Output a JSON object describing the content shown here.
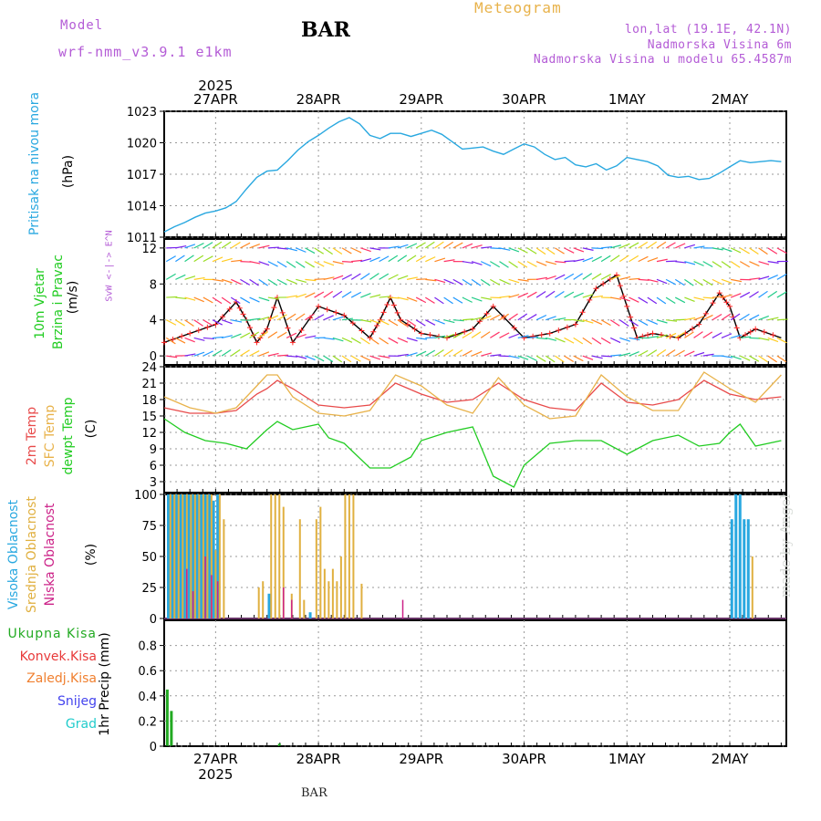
{
  "header": {
    "model_label": "Model",
    "model_run": "wrf-nmm_v3.9.1 e1km",
    "station": "BAR",
    "product": "Meteogram",
    "location": "lon,lat (19.1E, 42.1N)",
    "elevation": "Nadmorska Visina 6m",
    "model_elevation": "Nadmorska Visina u modelu 65.4587m"
  },
  "footer": {
    "station": "BAR",
    "credit": "made by Angel"
  },
  "colors": {
    "pressure": "#29a8e0",
    "temp2m": "#e84a4a",
    "sfc_temp": "#e8b24a",
    "dewpt": "#22cc22",
    "wind_speed": "#000000",
    "wind_dir": "#ff2222",
    "high_cloud": "#29a8e0",
    "mid_cloud": "#e0b040",
    "low_cloud": "#cc2288",
    "precip_total": "#22aa22",
    "precip_conv": "#e83a3a",
    "precip_frz": "#f08030",
    "snow": "#4444ee",
    "hail": "#22cccc",
    "grid": "#999999"
  },
  "time_axis": {
    "year": "2025",
    "days": [
      "27APR",
      "28APR",
      "29APR",
      "30APR",
      "1MAY",
      "2MAY"
    ]
  },
  "chart_data": [
    {
      "type": "line",
      "panel": "pressure",
      "ylabel": [
        "Pritisak na nivou mora",
        "(hPa)"
      ],
      "ylim": [
        1011,
        1023
      ],
      "yticks": [
        1011,
        1014,
        1017,
        1020,
        1023
      ],
      "x_unit": "days since 26APR 12:00 (days)",
      "series": [
        {
          "name": "Pritisak na nivou mora",
          "x": [
            0,
            0.1,
            0.2,
            0.3,
            0.4,
            0.5,
            0.6,
            0.7,
            0.8,
            0.9,
            1.0,
            1.1,
            1.2,
            1.3,
            1.4,
            1.5,
            1.6,
            1.7,
            1.8,
            1.9,
            2.0,
            2.1,
            2.2,
            2.3,
            2.4,
            2.5,
            2.6,
            2.7,
            2.8,
            2.9,
            3.0,
            3.1,
            3.2,
            3.3,
            3.4,
            3.5,
            3.6,
            3.7,
            3.8,
            3.9,
            4.0,
            4.1,
            4.2,
            4.3,
            4.4,
            4.5,
            4.6,
            4.7,
            4.8,
            4.9,
            5.0,
            5.1,
            5.2,
            5.3,
            5.4,
            5.5,
            5.6,
            5.7,
            5.8,
            5.9,
            6.0
          ],
          "values": [
            1011.5,
            1012.0,
            1012.4,
            1012.9,
            1013.3,
            1013.5,
            1013.8,
            1014.4,
            1015.6,
            1016.7,
            1017.3,
            1017.4,
            1018.3,
            1019.3,
            1020.1,
            1020.7,
            1021.4,
            1022.0,
            1022.4,
            1021.8,
            1020.7,
            1020.4,
            1020.9,
            1020.9,
            1020.6,
            1020.9,
            1021.2,
            1020.8,
            1020.1,
            1019.4,
            1019.5,
            1019.6,
            1019.2,
            1018.9,
            1019.4,
            1019.9,
            1019.6,
            1018.9,
            1018.4,
            1018.6,
            1017.9,
            1017.7,
            1018.0,
            1017.4,
            1017.8,
            1018.6,
            1018.4,
            1018.2,
            1017.8,
            1016.9,
            1016.7,
            1016.8,
            1016.5,
            1016.6,
            1017.1,
            1017.7,
            1018.3,
            1018.1,
            1018.2,
            1018.3,
            1018.2
          ]
        }
      ]
    },
    {
      "type": "line",
      "panel": "wind",
      "ylabel": [
        "10m Vjetar",
        "Brzina i Pravac",
        "(m/s)"
      ],
      "direction_scale": [
        "N",
        "^",
        "W <-|-> E",
        "v",
        "S"
      ],
      "ylim": [
        -1,
        13
      ],
      "yticks": [
        0,
        4,
        8,
        12
      ],
      "x_unit": "days since 26APR 12:00 (days)",
      "series": [
        {
          "name": "Brzina",
          "x": [
            0,
            0.25,
            0.5,
            0.7,
            0.8,
            0.9,
            1.0,
            1.1,
            1.25,
            1.5,
            1.75,
            2.0,
            2.1,
            2.2,
            2.3,
            2.5,
            2.75,
            3.0,
            3.2,
            3.5,
            3.75,
            4.0,
            4.2,
            4.4,
            4.5,
            4.6,
            4.75,
            5.0,
            5.2,
            5.4,
            5.5,
            5.6,
            5.75,
            6.0
          ],
          "values": [
            1.5,
            2.5,
            3.5,
            6.0,
            4.0,
            1.5,
            3.0,
            6.5,
            1.5,
            5.5,
            4.5,
            2.0,
            4.0,
            6.5,
            4.0,
            2.5,
            2.0,
            3.0,
            5.5,
            2.0,
            2.5,
            3.5,
            7.5,
            9.0,
            5.5,
            2.0,
            2.5,
            2.0,
            3.5,
            7.0,
            5.5,
            2.0,
            3.0,
            2.0
          ]
        }
      ]
    },
    {
      "type": "line",
      "panel": "temperature",
      "ylabel": [
        "2m Temp",
        "SFC Temp",
        "dewpt Temp",
        "(C)"
      ],
      "ylim": [
        1,
        24
      ],
      "yticks": [
        3,
        6,
        9,
        12,
        15,
        18,
        21,
        24
      ],
      "x_unit": "days since 26APR 12:00 (days)",
      "series": [
        {
          "name": "2m Temp",
          "x": [
            0,
            0.25,
            0.5,
            0.7,
            0.9,
            1.0,
            1.1,
            1.25,
            1.5,
            1.75,
            2.0,
            2.25,
            2.5,
            2.75,
            3.0,
            3.25,
            3.5,
            3.75,
            4.0,
            4.25,
            4.5,
            4.75,
            5.0,
            5.25,
            5.5,
            5.75,
            6.0
          ],
          "values": [
            16.5,
            15.5,
            15.5,
            16.0,
            19.0,
            20.0,
            21.5,
            20.0,
            17.0,
            16.5,
            17.0,
            21.0,
            19.0,
            17.5,
            18.0,
            21.0,
            18.0,
            16.5,
            16.0,
            21.0,
            17.5,
            17.0,
            18.0,
            21.5,
            19.0,
            18.0,
            18.5
          ]
        },
        {
          "name": "SFC Temp",
          "x": [
            0,
            0.25,
            0.5,
            0.7,
            0.9,
            1.0,
            1.1,
            1.25,
            1.5,
            1.75,
            2.0,
            2.25,
            2.5,
            2.75,
            3.0,
            3.25,
            3.5,
            3.75,
            4.0,
            4.25,
            4.5,
            4.75,
            5.0,
            5.25,
            5.5,
            5.75,
            6.0
          ],
          "values": [
            18.5,
            16.5,
            15.5,
            16.5,
            20.5,
            22.5,
            22.5,
            18.5,
            15.5,
            15.0,
            16.0,
            22.5,
            20.5,
            17.0,
            15.5,
            22.0,
            17.0,
            14.5,
            15.0,
            22.5,
            18.5,
            16.0,
            16.0,
            23.0,
            20.0,
            17.5,
            22.5
          ]
        },
        {
          "name": "dewpt Temp",
          "x": [
            0,
            0.2,
            0.4,
            0.6,
            0.8,
            1.0,
            1.1,
            1.25,
            1.5,
            1.6,
            1.75,
            2.0,
            2.2,
            2.4,
            2.5,
            2.75,
            3.0,
            3.2,
            3.4,
            3.5,
            3.75,
            4.0,
            4.25,
            4.5,
            4.75,
            5.0,
            5.2,
            5.4,
            5.5,
            5.6,
            5.75,
            6.0
          ],
          "values": [
            14.5,
            12.0,
            10.5,
            10.0,
            9.0,
            12.5,
            14.0,
            12.5,
            13.5,
            11.0,
            10.0,
            5.5,
            5.5,
            7.5,
            10.5,
            12.0,
            13.0,
            4.0,
            2.0,
            6.0,
            10.0,
            10.5,
            10.5,
            8.0,
            10.5,
            11.5,
            9.5,
            10.0,
            12.0,
            13.5,
            9.5,
            10.5
          ]
        }
      ]
    },
    {
      "type": "bar",
      "panel": "cloud",
      "ylabel": [
        "Visoka Oblacnost",
        "Srednja Oblacnost",
        "Niska Oblacnost",
        "(%)"
      ],
      "ylim": [
        0,
        100
      ],
      "yticks": [
        0,
        25,
        50,
        75,
        100
      ],
      "x_unit": "days since 26APR 12:00 (days)",
      "series": [
        {
          "name": "Visoka Oblacnost",
          "x": [
            0.04,
            0.08,
            0.12,
            0.16,
            0.2,
            0.24,
            0.28,
            0.32,
            0.36,
            0.4,
            0.44,
            0.48,
            0.52,
            1.02,
            1.42,
            5.52,
            5.56,
            5.6,
            5.64,
            5.68
          ],
          "values": [
            100,
            100,
            100,
            100,
            100,
            100,
            100,
            100,
            100,
            100,
            100,
            95,
            100,
            20,
            5,
            80,
            100,
            100,
            80,
            80
          ]
        },
        {
          "name": "Srednja Oblacnost",
          "x": [
            0.06,
            0.1,
            0.14,
            0.18,
            0.22,
            0.26,
            0.3,
            0.34,
            0.38,
            0.42,
            0.46,
            0.5,
            0.54,
            0.58,
            0.92,
            0.96,
            1.04,
            1.08,
            1.12,
            1.16,
            1.24,
            1.32,
            1.36,
            1.48,
            1.52,
            1.56,
            1.6,
            1.64,
            1.68,
            1.72,
            1.76,
            1.8,
            1.84,
            1.92,
            5.72
          ],
          "values": [
            100,
            100,
            100,
            100,
            100,
            100,
            100,
            100,
            100,
            100,
            100,
            55,
            100,
            80,
            25,
            30,
            100,
            100,
            100,
            90,
            20,
            80,
            15,
            80,
            90,
            40,
            30,
            40,
            30,
            50,
            100,
            100,
            100,
            28,
            50
          ]
        },
        {
          "name": "Niska Oblacnost",
          "x": [
            0.22,
            0.28,
            0.4,
            0.46,
            0.52,
            1.16,
            1.24,
            2.32
          ],
          "values": [
            40,
            22,
            50,
            35,
            30,
            25,
            15,
            15
          ]
        }
      ]
    },
    {
      "type": "bar",
      "panel": "precip",
      "ylabel": [
        "1hr Precip (mm)"
      ],
      "legend": [
        "Ukupna Kisa",
        "Konvek.Kisa",
        "Zaledj.Kisa",
        "Snijeg",
        "Grad"
      ],
      "ylim": [
        0,
        1
      ],
      "yticks": [
        0,
        0.2,
        0.4,
        0.6,
        0.8
      ],
      "x_unit": "days since 26APR 12:00 (days)",
      "series": [
        {
          "name": "Ukupna Kisa",
          "x": [
            0.03,
            0.07,
            1.12
          ],
          "values": [
            0.45,
            0.28,
            0.02
          ]
        }
      ]
    }
  ]
}
